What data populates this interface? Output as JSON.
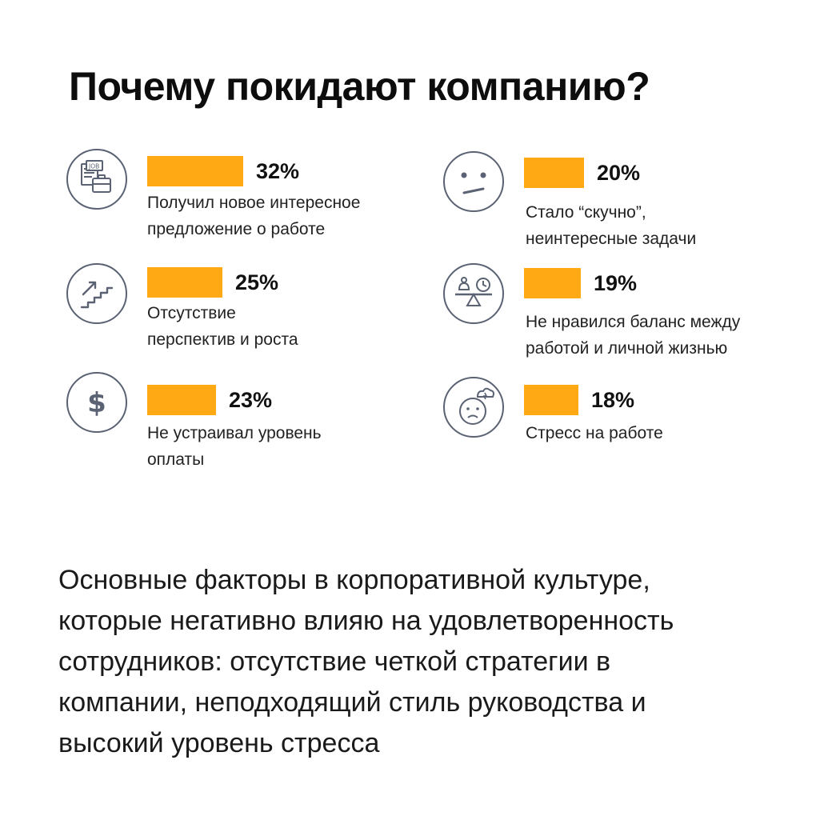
{
  "title": "Почему покидают компанию?",
  "colors": {
    "bar": "#FFAA14",
    "icon_stroke": "#5a6273"
  },
  "chart_data": {
    "type": "bar",
    "title": "Почему покидают компанию?",
    "unit": "%",
    "categories": [
      "Получил новое интересное предложение о работе",
      "Отсутствие перспектив и роста",
      "Не устраивал уровень оплаты",
      "Стало “скучно”, неинтересные задачи",
      "Не нравился баланс между работой и личной жизнью",
      "Стресс на работе"
    ],
    "values": [
      32,
      25,
      23,
      20,
      19,
      18
    ],
    "value_labels": [
      "32%",
      "25%",
      "23%",
      "20%",
      "19%",
      "18%"
    ],
    "label_lines": [
      [
        "Получил новое интересное",
        "предложение о работе"
      ],
      [
        "Отсутствие",
        "перспектив и роста"
      ],
      [
        "Не устраивал уровень",
        "оплаты"
      ],
      [
        "Стало “скучно”,",
        "неинтересные задачи"
      ],
      [
        "Не нравился баланс между",
        "работой и личной жизнью"
      ],
      [
        "Стресс на работе"
      ]
    ],
    "icons": [
      "job-offer-icon",
      "career-stairs-icon",
      "dollar-icon",
      "bored-face-icon",
      "work-life-balance-icon",
      "stressed-face-icon"
    ]
  },
  "footer_lines": [
    "Основные факторы в корпоративной культуре,",
    "которые негативно влияю на удовлетворенность",
    "сотрудников: отсутствие четкой  стратегии в",
    "компании, неподходящий стиль руководства и",
    "высокий уровень  стресса"
  ]
}
